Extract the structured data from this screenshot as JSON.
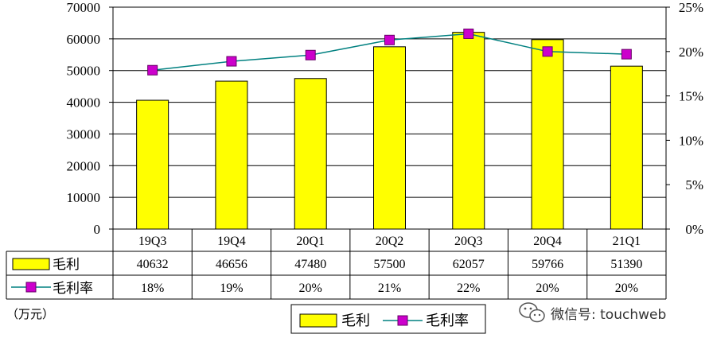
{
  "chart_data": {
    "type": "bar",
    "categories": [
      "19Q3",
      "19Q4",
      "20Q1",
      "20Q2",
      "20Q3",
      "20Q4",
      "21Q1"
    ],
    "series": [
      {
        "name": "毛利",
        "type": "bar",
        "axis": "left",
        "values": [
          40632,
          46656,
          47480,
          57500,
          62057,
          59766,
          51390
        ],
        "table_labels": [
          "40632",
          "46656",
          "47480",
          "57500",
          "62057",
          "59766",
          "51390"
        ],
        "color": "#ffff00"
      },
      {
        "name": "毛利率",
        "type": "line",
        "axis": "right",
        "values": [
          17.9,
          18.9,
          19.6,
          21.3,
          22.0,
          20.0,
          19.7
        ],
        "table_labels": [
          "18%",
          "19%",
          "20%",
          "21%",
          "22%",
          "20%",
          "20%"
        ],
        "color": "#cc00cc",
        "line_color": "#008080"
      }
    ],
    "y_left": {
      "ylim": [
        0,
        70000
      ],
      "ticks": [
        0,
        10000,
        20000,
        30000,
        40000,
        50000,
        60000,
        70000
      ],
      "tick_labels": [
        "0",
        "10000",
        "20000",
        "30000",
        "40000",
        "50000",
        "60000",
        "70000"
      ]
    },
    "y_right": {
      "ylim": [
        0,
        25
      ],
      "ticks": [
        0,
        5,
        10,
        15,
        20,
        25
      ],
      "tick_labels": [
        "0%",
        "5%",
        "10%",
        "15%",
        "20%",
        "25%"
      ]
    },
    "unit_label": "（万元）",
    "grid": true,
    "legend_position": "bottom",
    "data_table": true
  },
  "watermark": {
    "text": "微信号: touchweb",
    "icon": "wechat-icon"
  }
}
